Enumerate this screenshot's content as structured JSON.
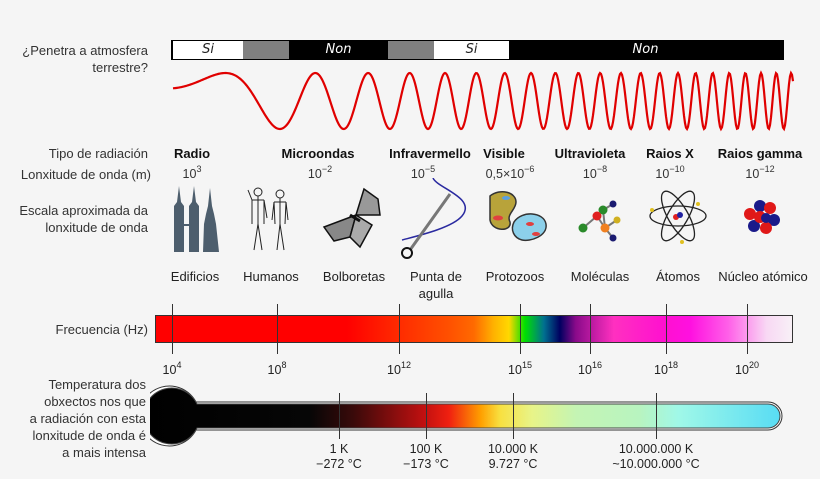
{
  "labels": {
    "penetrates_atmosphere": [
      "¿Penetra a atmosfera",
      "terrestre?"
    ],
    "radiation_type": "Tipo de radiación",
    "wavelength": "Lonxitude de onda (m)",
    "scale": [
      "Escala aproximada da",
      "lonxitude de onda"
    ],
    "frequency": "Frecuencia (Hz)",
    "temperature": [
      "Temperatura dos",
      "obxectos nos que",
      "a radiación con esta",
      "lonxitude de onda é",
      "a mais intensa"
    ]
  },
  "atmosphere_bar": [
    {
      "label": "Si",
      "color": "#ffffff"
    },
    {
      "label": "",
      "color": "#808080"
    },
    {
      "label": "Non",
      "color": "#000000"
    },
    {
      "label": "",
      "color": "#808080"
    },
    {
      "label": "Si",
      "color": "#ffffff"
    },
    {
      "label": "Non",
      "color": "#000000"
    }
  ],
  "wave_color": "#e00000",
  "radiation_types": [
    {
      "name": "Radio",
      "wl_base": "10",
      "wl_exp": "3"
    },
    {
      "name": "Microondas",
      "wl_base": "10",
      "wl_exp": "−2"
    },
    {
      "name": "Infravermello",
      "wl_base": "10",
      "wl_exp": "−5"
    },
    {
      "name": "Visible",
      "wl_base": "0,5×10",
      "wl_exp": "−6"
    },
    {
      "name": "Ultravioleta",
      "wl_base": "10",
      "wl_exp": "−8"
    },
    {
      "name": "Raios X",
      "wl_base": "10",
      "wl_exp": "−10"
    },
    {
      "name": "Raios gamma",
      "wl_base": "10",
      "wl_exp": "−12"
    }
  ],
  "scale_objects": [
    {
      "name": "Edificios",
      "icon": "buildings-icon"
    },
    {
      "name": "Humanos",
      "icon": "humans-icon"
    },
    {
      "name": "Bolboretas",
      "icon": "butterfly-icon"
    },
    {
      "name": "Punta de",
      "name2": "agulla",
      "icon": "needle-icon"
    },
    {
      "name": "Protozoos",
      "icon": "protozoa-icon"
    },
    {
      "name": "Moléculas",
      "icon": "molecule-icon"
    },
    {
      "name": "Átomos",
      "icon": "atom-icon"
    },
    {
      "name": "Núcleo atómico",
      "icon": "nucleus-icon"
    }
  ],
  "frequency_ticks": [
    {
      "base": "10",
      "exp": "4"
    },
    {
      "base": "10",
      "exp": "8"
    },
    {
      "base": "10",
      "exp": "12"
    },
    {
      "base": "10",
      "exp": "15"
    },
    {
      "base": "10",
      "exp": "16"
    },
    {
      "base": "10",
      "exp": "18"
    },
    {
      "base": "10",
      "exp": "20"
    }
  ],
  "temperature_ticks": [
    {
      "k": "1 K",
      "c": "−272 °C"
    },
    {
      "k": "100 K",
      "c": "−173 °C"
    },
    {
      "k": "10.000 K",
      "c": "9.727 °C"
    },
    {
      "k": "10.000.000 K",
      "c": "~10.000.000 °C"
    }
  ]
}
